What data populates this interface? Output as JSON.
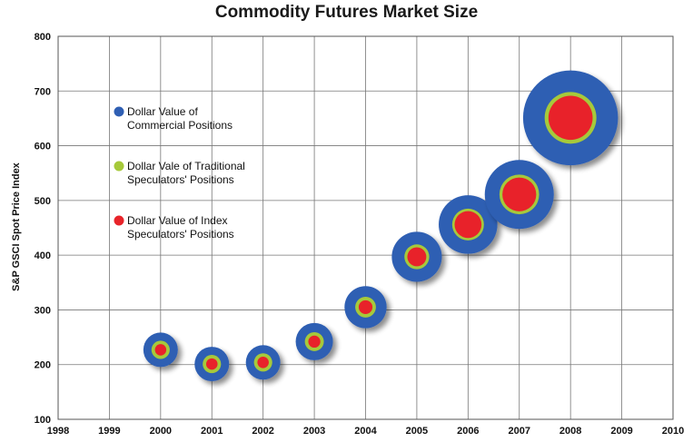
{
  "chart_data": {
    "type": "bubble",
    "title": "Commodity Futures Market Size",
    "xlabel": "",
    "ylabel": "S&P GSCI Spot Price Index",
    "xlim": [
      1998,
      2010
    ],
    "ylim": [
      100,
      800
    ],
    "x_ticks": [
      "1998",
      "1999",
      "2000",
      "2001",
      "2002",
      "2003",
      "2004",
      "2005",
      "2006",
      "2007",
      "2008",
      "2009",
      "2010"
    ],
    "y_ticks": [
      "100",
      "200",
      "300",
      "400",
      "500",
      "600",
      "700",
      "800"
    ],
    "grid": true,
    "legend_position": "upper-left",
    "series": [
      {
        "name": "Dollar Value of Commercial Positions",
        "legend_lines": [
          "Dollar Value of",
          "Commercial Positions"
        ],
        "color": "#2f5fb3",
        "relative_size": [
          1.0,
          1.0,
          1.0,
          1.08,
          1.22,
          1.45,
          1.7,
          2.0,
          2.75
        ]
      },
      {
        "name": "Dollar Vale of Traditional Speculators' Positions",
        "legend_lines": [
          "Dollar Vale of Traditional",
          "Speculators' Positions"
        ],
        "color": "#a6c93a",
        "relative_size": [
          0.53,
          0.53,
          0.53,
          0.55,
          0.6,
          0.72,
          0.92,
          1.15,
          1.5
        ]
      },
      {
        "name": "Dollar Value of Index Speculators' Positions",
        "legend_lines": [
          "Dollar Value of Index",
          "Speculators' Positions"
        ],
        "color": "#e8242a",
        "relative_size": [
          0.33,
          0.33,
          0.33,
          0.35,
          0.4,
          0.55,
          0.78,
          0.98,
          1.28
        ]
      }
    ],
    "points": [
      {
        "x": 2000,
        "y": 227
      },
      {
        "x": 2001,
        "y": 201
      },
      {
        "x": 2002,
        "y": 204
      },
      {
        "x": 2003,
        "y": 242
      },
      {
        "x": 2004,
        "y": 305
      },
      {
        "x": 2005,
        "y": 397
      },
      {
        "x": 2006,
        "y": 456
      },
      {
        "x": 2007,
        "y": 511
      },
      {
        "x": 2008,
        "y": 651
      }
    ]
  },
  "colors": {
    "commercial": "#2f5fb3",
    "traditional": "#a6c93a",
    "index": "#e8242a",
    "grid": "#777777"
  }
}
